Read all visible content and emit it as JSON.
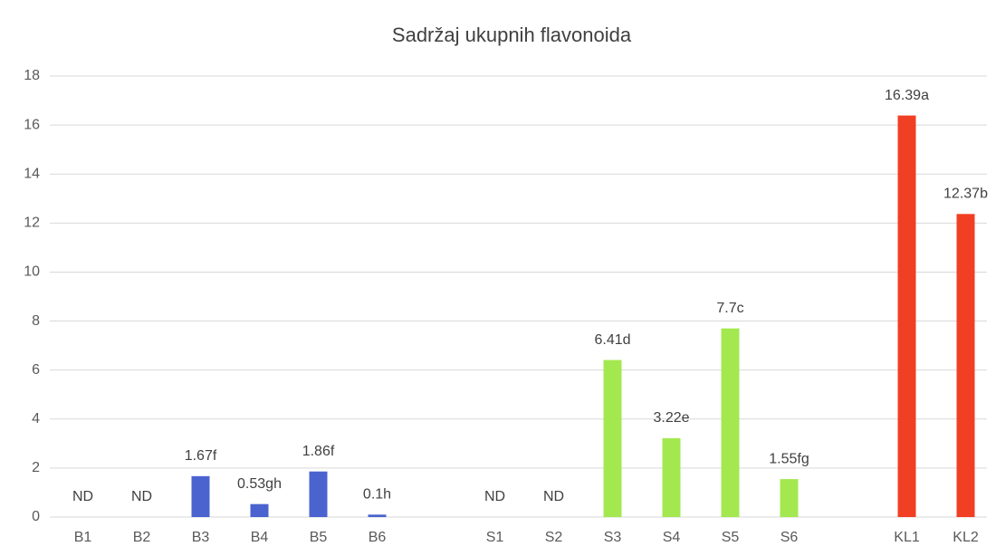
{
  "chart_data": {
    "type": "bar",
    "title": "Sadržaj ukupnih flavonoida",
    "categories": [
      "B1",
      "B2",
      "B3",
      "B4",
      "B5",
      "B6",
      null,
      "S1",
      "S2",
      "S3",
      "S4",
      "S5",
      "S6",
      null,
      "KL1",
      "KL2"
    ],
    "values": [
      null,
      null,
      1.67,
      0.53,
      1.86,
      0.1,
      null,
      null,
      null,
      6.41,
      3.22,
      7.7,
      1.55,
      null,
      16.39,
      12.37
    ],
    "value_labels": [
      "ND",
      "ND",
      "1.67f",
      "0.53gh",
      "1.86f",
      "0.1h",
      null,
      "ND",
      "ND",
      "6.41d",
      "3.22e",
      "7.7c",
      "1.55fg",
      null,
      "16.39a",
      "12.37b"
    ],
    "colors": [
      "#4a63cf",
      "#4a63cf",
      "#4a63cf",
      "#4a63cf",
      "#4a63cf",
      "#4a63cf",
      null,
      "#a3e84f",
      "#a3e84f",
      "#a3e84f",
      "#a3e84f",
      "#a3e84f",
      "#a3e84f",
      null,
      "#f03f23",
      "#f03f23"
    ],
    "ylim": [
      0,
      18
    ],
    "yticks": [
      0,
      2,
      4,
      6,
      8,
      10,
      12,
      14,
      16,
      18
    ],
    "grid": true
  }
}
